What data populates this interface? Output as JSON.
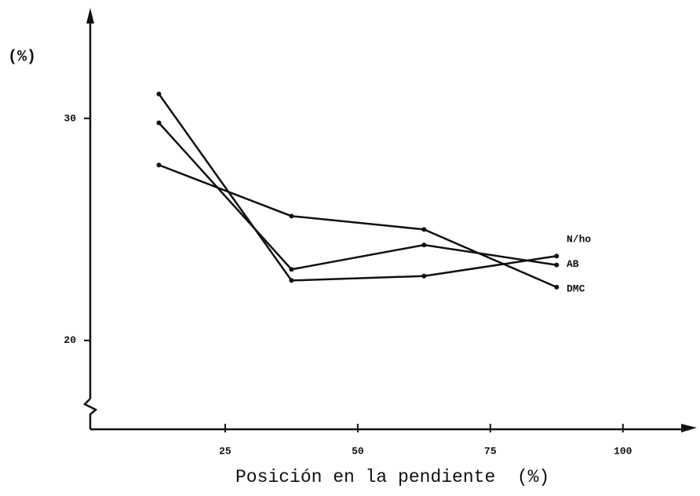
{
  "chart_data": {
    "type": "line",
    "y_label": "(%)",
    "x_label": "Posición en la pendiente  (%)",
    "x": [
      12.5,
      37.5,
      62.5,
      87.5
    ],
    "series": [
      {
        "name": "N/ho",
        "color": "#111111",
        "values": [
          31.1,
          22.7,
          22.9,
          23.8
        ]
      },
      {
        "name": "AB",
        "color": "#111111",
        "values": [
          29.8,
          23.2,
          24.3,
          23.4
        ]
      },
      {
        "name": "DMC",
        "color": "#111111",
        "values": [
          27.9,
          25.6,
          25.0,
          22.4
        ]
      }
    ],
    "xlim": [
      0,
      113.5
    ],
    "xticks": [
      25,
      50,
      75,
      100
    ],
    "ylim": [
      16,
      34.8
    ],
    "yticks": [
      20,
      30
    ],
    "grid": false
  }
}
